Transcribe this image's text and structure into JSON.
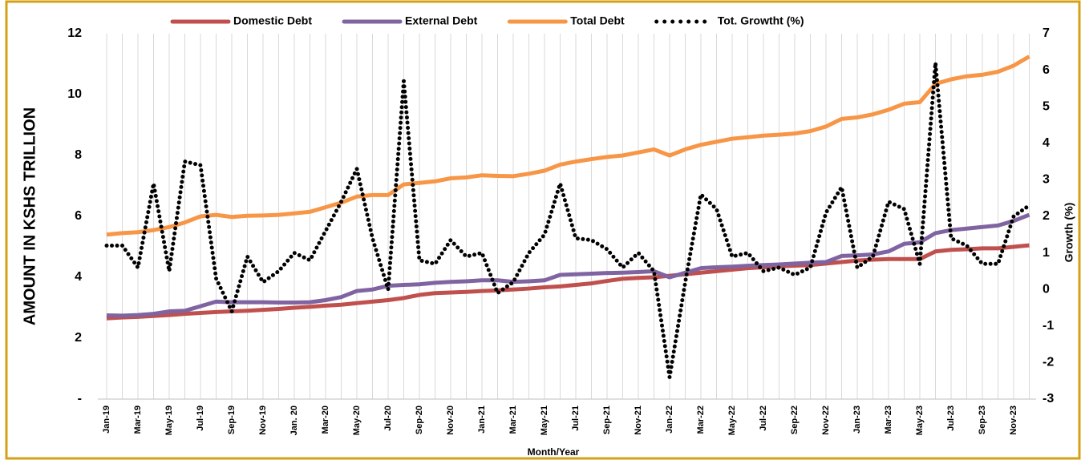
{
  "chart_data": {
    "type": "line",
    "x_label": "Month/Year",
    "y_label": "AMOUNT IN KSHS TRILLION",
    "y2_label": "Growth (%)",
    "categories": [
      "Jan-19",
      null,
      "Mar-19",
      null,
      "May-19",
      null,
      "Jul-19",
      null,
      "Sep-19",
      null,
      "Nov-19",
      null,
      "Jan. 20",
      null,
      "Mar-20",
      null,
      "May-20",
      null,
      "Jul-20",
      null,
      "Sep-20",
      null,
      "Nov-20",
      null,
      "Jan-21",
      null,
      "Mar-21",
      null,
      "May-21",
      null,
      "Jul-21",
      null,
      "Sep-21",
      null,
      "Nov-21",
      null,
      "Jan-22",
      null,
      "Mar-22",
      null,
      "May-22",
      null,
      "Jul-22",
      null,
      "Sep-22",
      null,
      "Nov-22",
      null,
      "Jan-23",
      null,
      "Mar-23",
      null,
      "May-23",
      null,
      "Jul-23",
      null,
      "Sep-23",
      null,
      "Nov-23",
      null
    ],
    "series": [
      {
        "name": "Domestic Debt",
        "color": "#c0504d",
        "values": [
          2.65,
          2.68,
          2.7,
          2.73,
          2.76,
          2.8,
          2.83,
          2.86,
          2.88,
          2.9,
          2.93,
          2.96,
          3.0,
          3.03,
          3.07,
          3.1,
          3.15,
          3.2,
          3.25,
          3.32,
          3.42,
          3.48,
          3.5,
          3.52,
          3.55,
          3.57,
          3.6,
          3.63,
          3.67,
          3.7,
          3.75,
          3.8,
          3.88,
          3.95,
          3.98,
          4.0,
          4.05,
          4.1,
          4.15,
          4.2,
          4.25,
          4.3,
          4.33,
          4.36,
          4.38,
          4.4,
          4.45,
          4.5,
          4.55,
          4.58,
          4.6,
          4.6,
          4.6,
          4.85,
          4.9,
          4.92,
          4.95,
          4.95,
          5.0,
          5.05
        ]
      },
      {
        "name": "External Debt",
        "color": "#8064a2",
        "values": [
          2.75,
          2.74,
          2.76,
          2.8,
          2.88,
          2.9,
          3.05,
          3.2,
          3.18,
          3.18,
          3.18,
          3.17,
          3.17,
          3.18,
          3.25,
          3.35,
          3.55,
          3.6,
          3.72,
          3.75,
          3.77,
          3.82,
          3.85,
          3.87,
          3.9,
          3.9,
          3.85,
          3.87,
          3.9,
          4.08,
          4.1,
          4.12,
          4.14,
          4.15,
          4.17,
          4.2,
          4.0,
          4.15,
          4.3,
          4.33,
          4.35,
          4.38,
          4.4,
          4.42,
          4.45,
          4.48,
          4.5,
          4.7,
          4.72,
          4.75,
          4.85,
          5.1,
          5.15,
          5.45,
          5.55,
          5.6,
          5.65,
          5.7,
          5.85,
          6.05
        ]
      },
      {
        "name": "Total Debt",
        "color": "#f79646",
        "values": [
          5.4,
          5.45,
          5.48,
          5.55,
          5.65,
          5.8,
          6.0,
          6.05,
          5.98,
          6.02,
          6.03,
          6.05,
          6.1,
          6.15,
          6.3,
          6.45,
          6.65,
          6.7,
          6.7,
          7.05,
          7.1,
          7.15,
          7.25,
          7.28,
          7.35,
          7.33,
          7.32,
          7.4,
          7.5,
          7.7,
          7.8,
          7.88,
          7.95,
          8.0,
          8.1,
          8.2,
          8.0,
          8.2,
          8.35,
          8.45,
          8.55,
          8.6,
          8.65,
          8.68,
          8.72,
          8.8,
          8.95,
          9.2,
          9.25,
          9.35,
          9.5,
          9.7,
          9.75,
          10.35,
          10.5,
          10.6,
          10.65,
          10.75,
          10.95,
          11.25
        ]
      },
      {
        "name": "Tot. Growtht (%)",
        "color": "#000000",
        "axis": "y2",
        "dotted": true,
        "values": [
          1.2,
          1.2,
          0.6,
          2.9,
          0.5,
          3.5,
          3.4,
          0.3,
          -0.6,
          0.9,
          0.2,
          0.5,
          1.0,
          0.8,
          1.6,
          2.4,
          3.3,
          1.4,
          0.0,
          5.7,
          0.8,
          0.7,
          1.35,
          0.9,
          1.0,
          -0.1,
          0.2,
          1.0,
          1.5,
          2.9,
          1.4,
          1.35,
          1.1,
          0.6,
          1.0,
          0.5,
          -2.4,
          0.2,
          2.6,
          2.2,
          0.9,
          1.0,
          0.5,
          0.6,
          0.4,
          0.6,
          2.1,
          2.8,
          0.6,
          0.9,
          2.4,
          2.2,
          0.7,
          6.2,
          1.4,
          1.2,
          0.7,
          0.7,
          2.0,
          2.3
        ]
      }
    ],
    "ylim": [
      0,
      12
    ],
    "yticks": [
      {
        "value": 0,
        "label": "-"
      },
      2,
      4,
      6,
      8,
      10,
      12
    ],
    "y2lim": [
      -3,
      7
    ],
    "y2ticks": [
      -3,
      -2,
      -1,
      0,
      1,
      2,
      3,
      4,
      5,
      6,
      7
    ],
    "grid": "x",
    "legend": "top"
  }
}
